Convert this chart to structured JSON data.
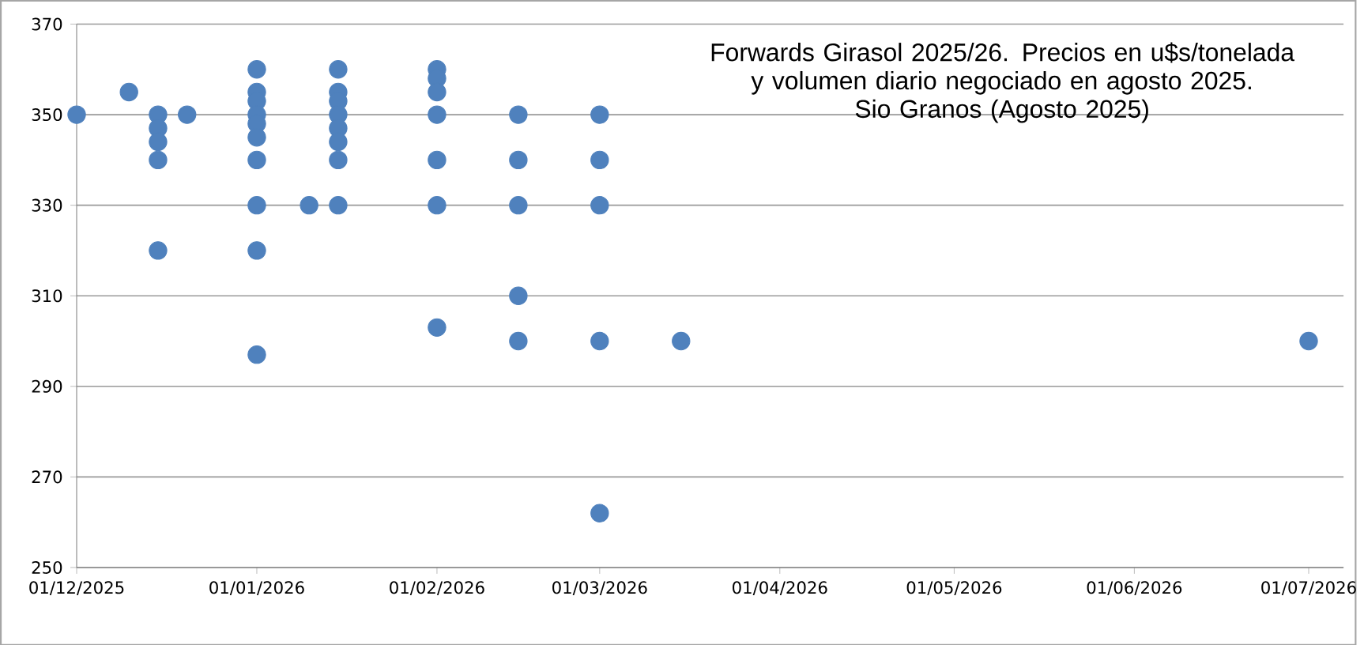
{
  "chart_data": {
    "type": "scatter",
    "title": "Forwards Girasol 2025/26. Precios en u$s/tonelada y volumen diario negociado en agosto 2025.",
    "subtitle": "Sio Granos (Agosto 2025)",
    "x": [
      "2025-12-01",
      "2025-12-10",
      "2025-12-15",
      "2025-12-15",
      "2025-12-15",
      "2025-12-15",
      "2025-12-15",
      "2025-12-20",
      "2026-01-01",
      "2026-01-01",
      "2026-01-01",
      "2026-01-01",
      "2026-01-01",
      "2026-01-01",
      "2026-01-01",
      "2026-01-01",
      "2026-01-01",
      "2026-01-01",
      "2026-01-10",
      "2026-01-15",
      "2026-01-15",
      "2026-01-15",
      "2026-01-15",
      "2026-01-15",
      "2026-01-15",
      "2026-01-15",
      "2026-01-15",
      "2026-02-01",
      "2026-02-01",
      "2026-02-01",
      "2026-02-01",
      "2026-02-01",
      "2026-02-01",
      "2026-02-01",
      "2026-02-15",
      "2026-02-15",
      "2026-02-15",
      "2026-02-15",
      "2026-02-15",
      "2026-03-01",
      "2026-03-01",
      "2026-03-01",
      "2026-03-01",
      "2026-03-01",
      "2026-03-15",
      "2026-07-01"
    ],
    "values": [
      350,
      355,
      350,
      347,
      344,
      340,
      320,
      350,
      360,
      355,
      353,
      350,
      348,
      345,
      340,
      330,
      320,
      297,
      330,
      360,
      355,
      353,
      350,
      347,
      344,
      340,
      330,
      360,
      358,
      355,
      350,
      340,
      330,
      303,
      350,
      340,
      330,
      310,
      300,
      350,
      340,
      330,
      300,
      262,
      300,
      300
    ],
    "color": "#4f81bd",
    "marker": "circle",
    "xlim": [
      "2025-12-01",
      "2026-07-07"
    ],
    "xticks": [
      {
        "value": "2025-12-01",
        "label": "01/12/2025"
      },
      {
        "value": "2026-01-01",
        "label": "01/01/2026"
      },
      {
        "value": "2026-02-01",
        "label": "01/02/2026"
      },
      {
        "value": "2026-03-01",
        "label": "01/03/2026"
      },
      {
        "value": "2026-04-01",
        "label": "01/04/2026"
      },
      {
        "value": "2026-05-01",
        "label": "01/05/2026"
      },
      {
        "value": "2026-06-01",
        "label": "01/06/2026"
      },
      {
        "value": "2026-07-01",
        "label": "01/07/2026"
      }
    ],
    "ylim": [
      250,
      370
    ],
    "yticks": [
      250,
      270,
      290,
      310,
      330,
      350,
      370
    ],
    "grid": "y"
  }
}
